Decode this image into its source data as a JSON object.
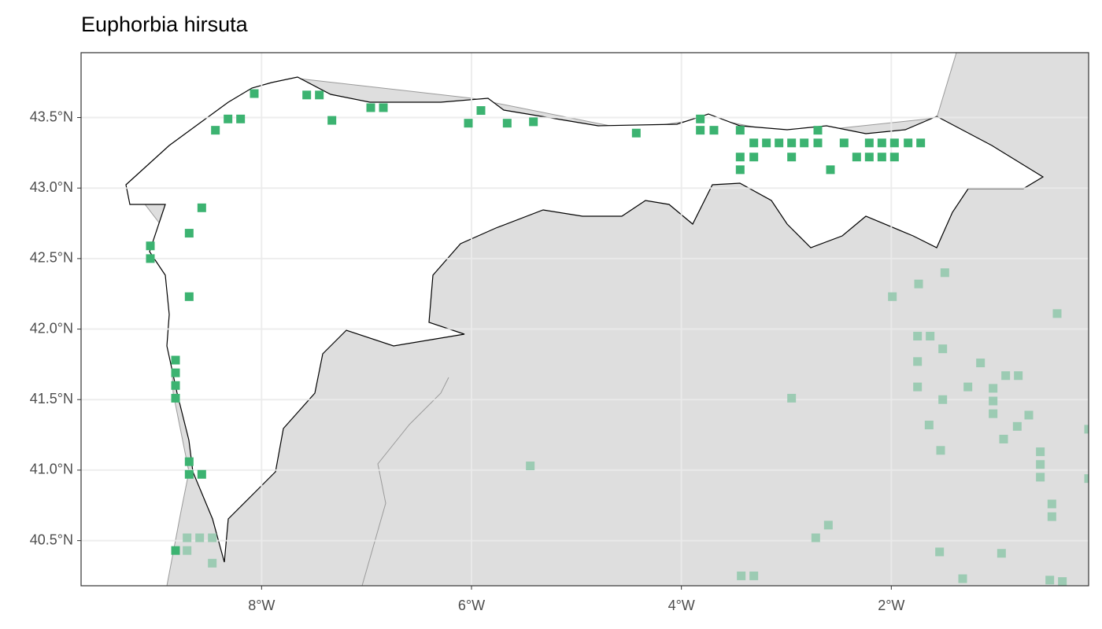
{
  "chart_data": {
    "type": "map",
    "title": "Euphorbia hirsuta",
    "xlim": [
      -9.72,
      -0.12
    ],
    "ylim": [
      40.18,
      43.96
    ],
    "xticks": [
      {
        "value": -8,
        "label": "8°W"
      },
      {
        "value": -6,
        "label": "6°W"
      },
      {
        "value": -4,
        "label": "4°W"
      },
      {
        "value": -2,
        "label": "2°W"
      }
    ],
    "yticks": [
      {
        "value": 40.5,
        "label": "40.5°N"
      },
      {
        "value": 41,
        "label": "41.0°N"
      },
      {
        "value": 41.5,
        "label": "41.5°N"
      },
      {
        "value": 42,
        "label": "42.0°N"
      },
      {
        "value": 42.5,
        "label": "42.5°N"
      },
      {
        "value": 43,
        "label": "43.0°N"
      },
      {
        "value": 43.5,
        "label": "43.5°N"
      }
    ],
    "grid": true,
    "series": [
      {
        "color": "#3cb371",
        "x": [
          -8.07,
          -7.57,
          -7.45,
          -7.33,
          -6.96,
          -6.84,
          -8.32,
          -8.2,
          -8.44,
          -6.03,
          -5.91,
          -5.66,
          -5.41,
          -4.43,
          -3.82,
          -3.82,
          -3.69,
          -3.44,
          -3.44,
          -3.44,
          -3.31,
          -3.31,
          -3.19,
          -3.07,
          -2.95,
          -2.95,
          -2.83,
          -2.7,
          -2.7,
          -2.58,
          -2.45,
          -2.33,
          -2.21,
          -2.21,
          -2.09,
          -2.09,
          -1.97,
          -1.97,
          -1.84,
          -1.72,
          -8.57,
          -8.69,
          -9.06,
          -9.06,
          -8.69,
          -8.82,
          -8.82,
          -8.82,
          -8.82,
          -8.69,
          -8.69,
          -8.57,
          -8.82
        ],
        "y": [
          43.67,
          43.66,
          43.66,
          43.48,
          43.57,
          43.57,
          43.49,
          43.49,
          43.41,
          43.46,
          43.55,
          43.46,
          43.47,
          43.39,
          43.49,
          43.41,
          43.41,
          43.41,
          43.22,
          43.13,
          43.32,
          43.22,
          43.32,
          43.32,
          43.32,
          43.22,
          43.32,
          43.32,
          43.41,
          43.13,
          43.32,
          43.22,
          43.32,
          43.22,
          43.32,
          43.22,
          43.32,
          43.22,
          43.32,
          43.32,
          42.86,
          42.68,
          42.59,
          42.5,
          42.23,
          41.78,
          41.69,
          41.6,
          41.51,
          41.06,
          40.97,
          40.97,
          40.43
        ]
      },
      {
        "color": "#9ccbb3",
        "x": [
          -1.49,
          -1.74,
          -1.99,
          -0.42,
          -1.75,
          -1.63,
          -1.51,
          -1.75,
          -1.15,
          -0.91,
          -0.79,
          -1.75,
          -1.27,
          -1.03,
          -2.95,
          -1.51,
          -1.03,
          -1.03,
          -0.69,
          -1.64,
          -0.8,
          -0.93,
          -1.53,
          -0.58,
          -0.12,
          -5.44,
          -0.58,
          -0.58,
          -0.12,
          -0.47,
          -0.47,
          -2.6,
          -2.72,
          -8.71,
          -8.59,
          -8.47,
          -8.71,
          -8.47,
          -1.54,
          -0.95,
          -3.43,
          -3.31,
          -1.32,
          -0.49,
          -0.37
        ],
        "y": [
          42.4,
          42.32,
          42.23,
          42.11,
          41.95,
          41.95,
          41.86,
          41.77,
          41.76,
          41.67,
          41.67,
          41.59,
          41.59,
          41.58,
          41.51,
          41.5,
          41.49,
          41.4,
          41.39,
          41.32,
          41.31,
          41.22,
          41.14,
          41.13,
          41.29,
          41.03,
          41.04,
          40.95,
          40.94,
          40.76,
          40.67,
          40.61,
          40.52,
          40.52,
          40.52,
          40.52,
          40.43,
          40.34,
          40.42,
          40.41,
          40.25,
          40.25,
          40.23,
          40.22,
          40.21
        ]
      }
    ]
  }
}
